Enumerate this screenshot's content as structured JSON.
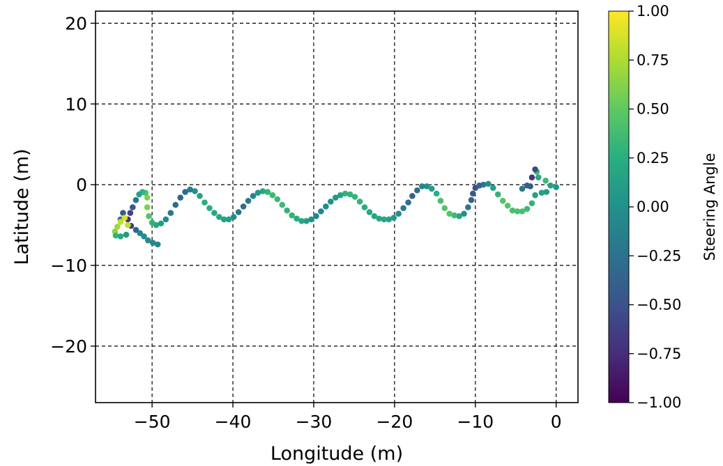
{
  "chart_data": {
    "type": "scatter",
    "xlabel": "Longitude (m)",
    "ylabel": "Latitude (m)",
    "xlim": [
      -57,
      2.7
    ],
    "ylim": [
      -27,
      21.5
    ],
    "xticks": [
      -50,
      -40,
      -30,
      -20,
      -10,
      0
    ],
    "yticks": [
      20,
      10,
      0,
      -10,
      -20
    ],
    "xtick_labels": [
      "−50",
      "−40",
      "−30",
      "−20",
      "−10",
      "0"
    ],
    "ytick_labels": [
      "20",
      "10",
      "0",
      "−10",
      "−20"
    ],
    "grid": true,
    "colorbar": {
      "label": "Steering Angle",
      "range": [
        -1.0,
        1.0
      ],
      "ticks": [
        1.0,
        0.75,
        0.5,
        0.25,
        0.0,
        -0.25,
        -0.5,
        -0.75,
        -1.0
      ],
      "tick_labels": [
        "1.00",
        "0.75",
        "0.50",
        "0.25",
        "0.00",
        "−0.25",
        "−0.50",
        "−0.75",
        "−1.00"
      ],
      "colormap": "viridis"
    },
    "points": [
      {
        "x": 0.0,
        "y": -0.3,
        "c": 0.05
      },
      {
        "x": -0.7,
        "y": -0.1,
        "c": 0.1
      },
      {
        "x": -1.3,
        "y": 0.5,
        "c": 0.35
      },
      {
        "x": -1.2,
        "y": -0.9,
        "c": 0.1
      },
      {
        "x": -1.8,
        "y": -1.0,
        "c": 0.15
      },
      {
        "x": -2.2,
        "y": 0.9,
        "c": 0.2
      },
      {
        "x": -2.4,
        "y": 1.6,
        "c": 0.35
      },
      {
        "x": -2.6,
        "y": 1.9,
        "c": -0.55
      },
      {
        "x": -3.0,
        "y": 0.9,
        "c": -0.7
      },
      {
        "x": -3.2,
        "y": -0.2,
        "c": -0.45
      },
      {
        "x": -3.6,
        "y": -0.1,
        "c": -0.4
      },
      {
        "x": -4.2,
        "y": -0.5,
        "c": -0.2
      },
      {
        "x": -2.6,
        "y": -1.3,
        "c": 0.15
      },
      {
        "x": -3.0,
        "y": -2.3,
        "c": 0.3
      },
      {
        "x": -3.6,
        "y": -3.0,
        "c": 0.35
      },
      {
        "x": -4.2,
        "y": -3.3,
        "c": 0.4
      },
      {
        "x": -4.8,
        "y": -3.3,
        "c": 0.4
      },
      {
        "x": -5.4,
        "y": -3.2,
        "c": 0.4
      },
      {
        "x": -6.0,
        "y": -2.6,
        "c": 0.45
      },
      {
        "x": -6.6,
        "y": -2.0,
        "c": 0.45
      },
      {
        "x": -7.2,
        "y": -1.2,
        "c": 0.3
      },
      {
        "x": -7.8,
        "y": -0.4,
        "c": 0.15
      },
      {
        "x": -8.4,
        "y": 0.1,
        "c": 0.0
      },
      {
        "x": -9.0,
        "y": 0.0,
        "c": -0.2
      },
      {
        "x": -9.5,
        "y": -0.1,
        "c": -0.35
      },
      {
        "x": -10.0,
        "y": -0.4,
        "c": -0.5
      },
      {
        "x": -10.3,
        "y": -1.1,
        "c": -0.45
      },
      {
        "x": -10.5,
        "y": -1.9,
        "c": -0.35
      },
      {
        "x": -10.9,
        "y": -2.8,
        "c": -0.2
      },
      {
        "x": -11.4,
        "y": -3.6,
        "c": 0.0
      },
      {
        "x": -12.0,
        "y": -3.9,
        "c": 0.2
      },
      {
        "x": -12.6,
        "y": -3.8,
        "c": 0.35
      },
      {
        "x": -13.2,
        "y": -3.6,
        "c": 0.45
      },
      {
        "x": -13.8,
        "y": -2.9,
        "c": 0.45
      },
      {
        "x": -14.3,
        "y": -2.0,
        "c": 0.4
      },
      {
        "x": -14.8,
        "y": -1.1,
        "c": 0.25
      },
      {
        "x": -15.4,
        "y": -0.5,
        "c": 0.1
      },
      {
        "x": -16.0,
        "y": -0.2,
        "c": 0.0
      },
      {
        "x": -16.6,
        "y": -0.2,
        "c": -0.1
      },
      {
        "x": -17.2,
        "y": -0.7,
        "c": -0.3
      },
      {
        "x": -17.8,
        "y": -1.4,
        "c": -0.35
      },
      {
        "x": -18.3,
        "y": -2.2,
        "c": -0.3
      },
      {
        "x": -18.9,
        "y": -2.9,
        "c": -0.2
      },
      {
        "x": -19.5,
        "y": -3.6,
        "c": -0.05
      },
      {
        "x": -20.1,
        "y": -4.1,
        "c": 0.05
      },
      {
        "x": -20.7,
        "y": -4.3,
        "c": 0.15
      },
      {
        "x": -21.3,
        "y": -4.3,
        "c": 0.2
      },
      {
        "x": -21.9,
        "y": -4.2,
        "c": 0.2
      },
      {
        "x": -22.5,
        "y": -3.9,
        "c": 0.2
      },
      {
        "x": -23.1,
        "y": -3.4,
        "c": 0.2
      },
      {
        "x": -23.7,
        "y": -2.8,
        "c": 0.25
      },
      {
        "x": -24.3,
        "y": -2.1,
        "c": 0.3
      },
      {
        "x": -24.9,
        "y": -1.5,
        "c": 0.3
      },
      {
        "x": -25.5,
        "y": -1.2,
        "c": 0.3
      },
      {
        "x": -26.1,
        "y": -1.1,
        "c": 0.3
      },
      {
        "x": -26.7,
        "y": -1.3,
        "c": 0.15
      },
      {
        "x": -27.3,
        "y": -1.6,
        "c": 0.05
      },
      {
        "x": -27.9,
        "y": -2.1,
        "c": 0.0
      },
      {
        "x": -28.5,
        "y": -2.7,
        "c": -0.05
      },
      {
        "x": -29.1,
        "y": -3.3,
        "c": -0.1
      },
      {
        "x": -29.7,
        "y": -3.9,
        "c": -0.1
      },
      {
        "x": -30.3,
        "y": -4.3,
        "c": 0.0
      },
      {
        "x": -30.9,
        "y": -4.5,
        "c": 0.1
      },
      {
        "x": -31.5,
        "y": -4.5,
        "c": 0.2
      },
      {
        "x": -32.1,
        "y": -4.2,
        "c": 0.25
      },
      {
        "x": -32.7,
        "y": -3.8,
        "c": 0.3
      },
      {
        "x": -33.3,
        "y": -3.2,
        "c": 0.3
      },
      {
        "x": -33.9,
        "y": -2.5,
        "c": 0.35
      },
      {
        "x": -34.5,
        "y": -1.8,
        "c": 0.35
      },
      {
        "x": -35.1,
        "y": -1.3,
        "c": 0.35
      },
      {
        "x": -35.7,
        "y": -0.9,
        "c": 0.3
      },
      {
        "x": -36.3,
        "y": -0.8,
        "c": 0.2
      },
      {
        "x": -36.9,
        "y": -1.0,
        "c": 0.05
      },
      {
        "x": -37.5,
        "y": -1.4,
        "c": -0.1
      },
      {
        "x": -38.1,
        "y": -2.0,
        "c": -0.2
      },
      {
        "x": -38.7,
        "y": -2.7,
        "c": -0.3
      },
      {
        "x": -39.3,
        "y": -3.4,
        "c": -0.2
      },
      {
        "x": -39.9,
        "y": -4.0,
        "c": -0.05
      },
      {
        "x": -40.5,
        "y": -4.3,
        "c": 0.1
      },
      {
        "x": -41.1,
        "y": -4.3,
        "c": 0.15
      },
      {
        "x": -41.7,
        "y": -4.0,
        "c": 0.2
      },
      {
        "x": -42.3,
        "y": -3.5,
        "c": 0.2
      },
      {
        "x": -42.9,
        "y": -2.9,
        "c": 0.25
      },
      {
        "x": -43.5,
        "y": -2.2,
        "c": 0.25
      },
      {
        "x": -44.1,
        "y": -1.4,
        "c": 0.15
      },
      {
        "x": -44.7,
        "y": -0.8,
        "c": 0.0
      },
      {
        "x": -45.3,
        "y": -0.6,
        "c": -0.15
      },
      {
        "x": -45.9,
        "y": -0.9,
        "c": -0.3
      },
      {
        "x": -46.5,
        "y": -1.6,
        "c": -0.35
      },
      {
        "x": -47.1,
        "y": -2.5,
        "c": -0.3
      },
      {
        "x": -47.7,
        "y": -3.5,
        "c": -0.2
      },
      {
        "x": -48.3,
        "y": -4.3,
        "c": -0.05
      },
      {
        "x": -48.9,
        "y": -4.8,
        "c": 0.1
      },
      {
        "x": -49.5,
        "y": -5.0,
        "c": 0.2
      },
      {
        "x": -50.0,
        "y": -4.7,
        "c": 0.3
      },
      {
        "x": -50.4,
        "y": -3.9,
        "c": 0.45
      },
      {
        "x": -50.6,
        "y": -2.8,
        "c": 0.6
      },
      {
        "x": -50.6,
        "y": -1.6,
        "c": 0.6
      },
      {
        "x": -50.8,
        "y": -1.0,
        "c": 0.45
      },
      {
        "x": -51.2,
        "y": -0.9,
        "c": 0.3
      },
      {
        "x": -51.6,
        "y": -1.2,
        "c": 0.15
      },
      {
        "x": -52.0,
        "y": -1.9,
        "c": -0.2
      },
      {
        "x": -52.4,
        "y": -2.8,
        "c": -0.45
      },
      {
        "x": -52.7,
        "y": -3.5,
        "c": -0.6
      },
      {
        "x": -53.0,
        "y": -4.3,
        "c": -0.7
      },
      {
        "x": -52.6,
        "y": -5.1,
        "c": -0.65
      },
      {
        "x": -52.0,
        "y": -5.6,
        "c": -0.35
      },
      {
        "x": -51.5,
        "y": -6.0,
        "c": -0.1
      },
      {
        "x": -51.0,
        "y": -6.4,
        "c": 0.0
      },
      {
        "x": -50.5,
        "y": -6.9,
        "c": -0.05
      },
      {
        "x": -49.9,
        "y": -7.2,
        "c": -0.1
      },
      {
        "x": -49.3,
        "y": -7.4,
        "c": -0.1
      },
      {
        "x": -53.6,
        "y": -3.5,
        "c": -0.45
      },
      {
        "x": -53.9,
        "y": -4.3,
        "c": -0.3
      },
      {
        "x": -53.4,
        "y": -4.1,
        "c": 0.9
      },
      {
        "x": -53.9,
        "y": -4.6,
        "c": 0.8
      },
      {
        "x": -54.3,
        "y": -5.2,
        "c": 0.7
      },
      {
        "x": -54.6,
        "y": -5.8,
        "c": 0.65
      },
      {
        "x": -54.5,
        "y": -6.3,
        "c": 0.3
      },
      {
        "x": -53.9,
        "y": -6.4,
        "c": 0.2
      },
      {
        "x": -53.2,
        "y": -6.2,
        "c": 0.05
      },
      {
        "x": -53.0,
        "y": -5.0,
        "c": 0.8
      }
    ]
  }
}
